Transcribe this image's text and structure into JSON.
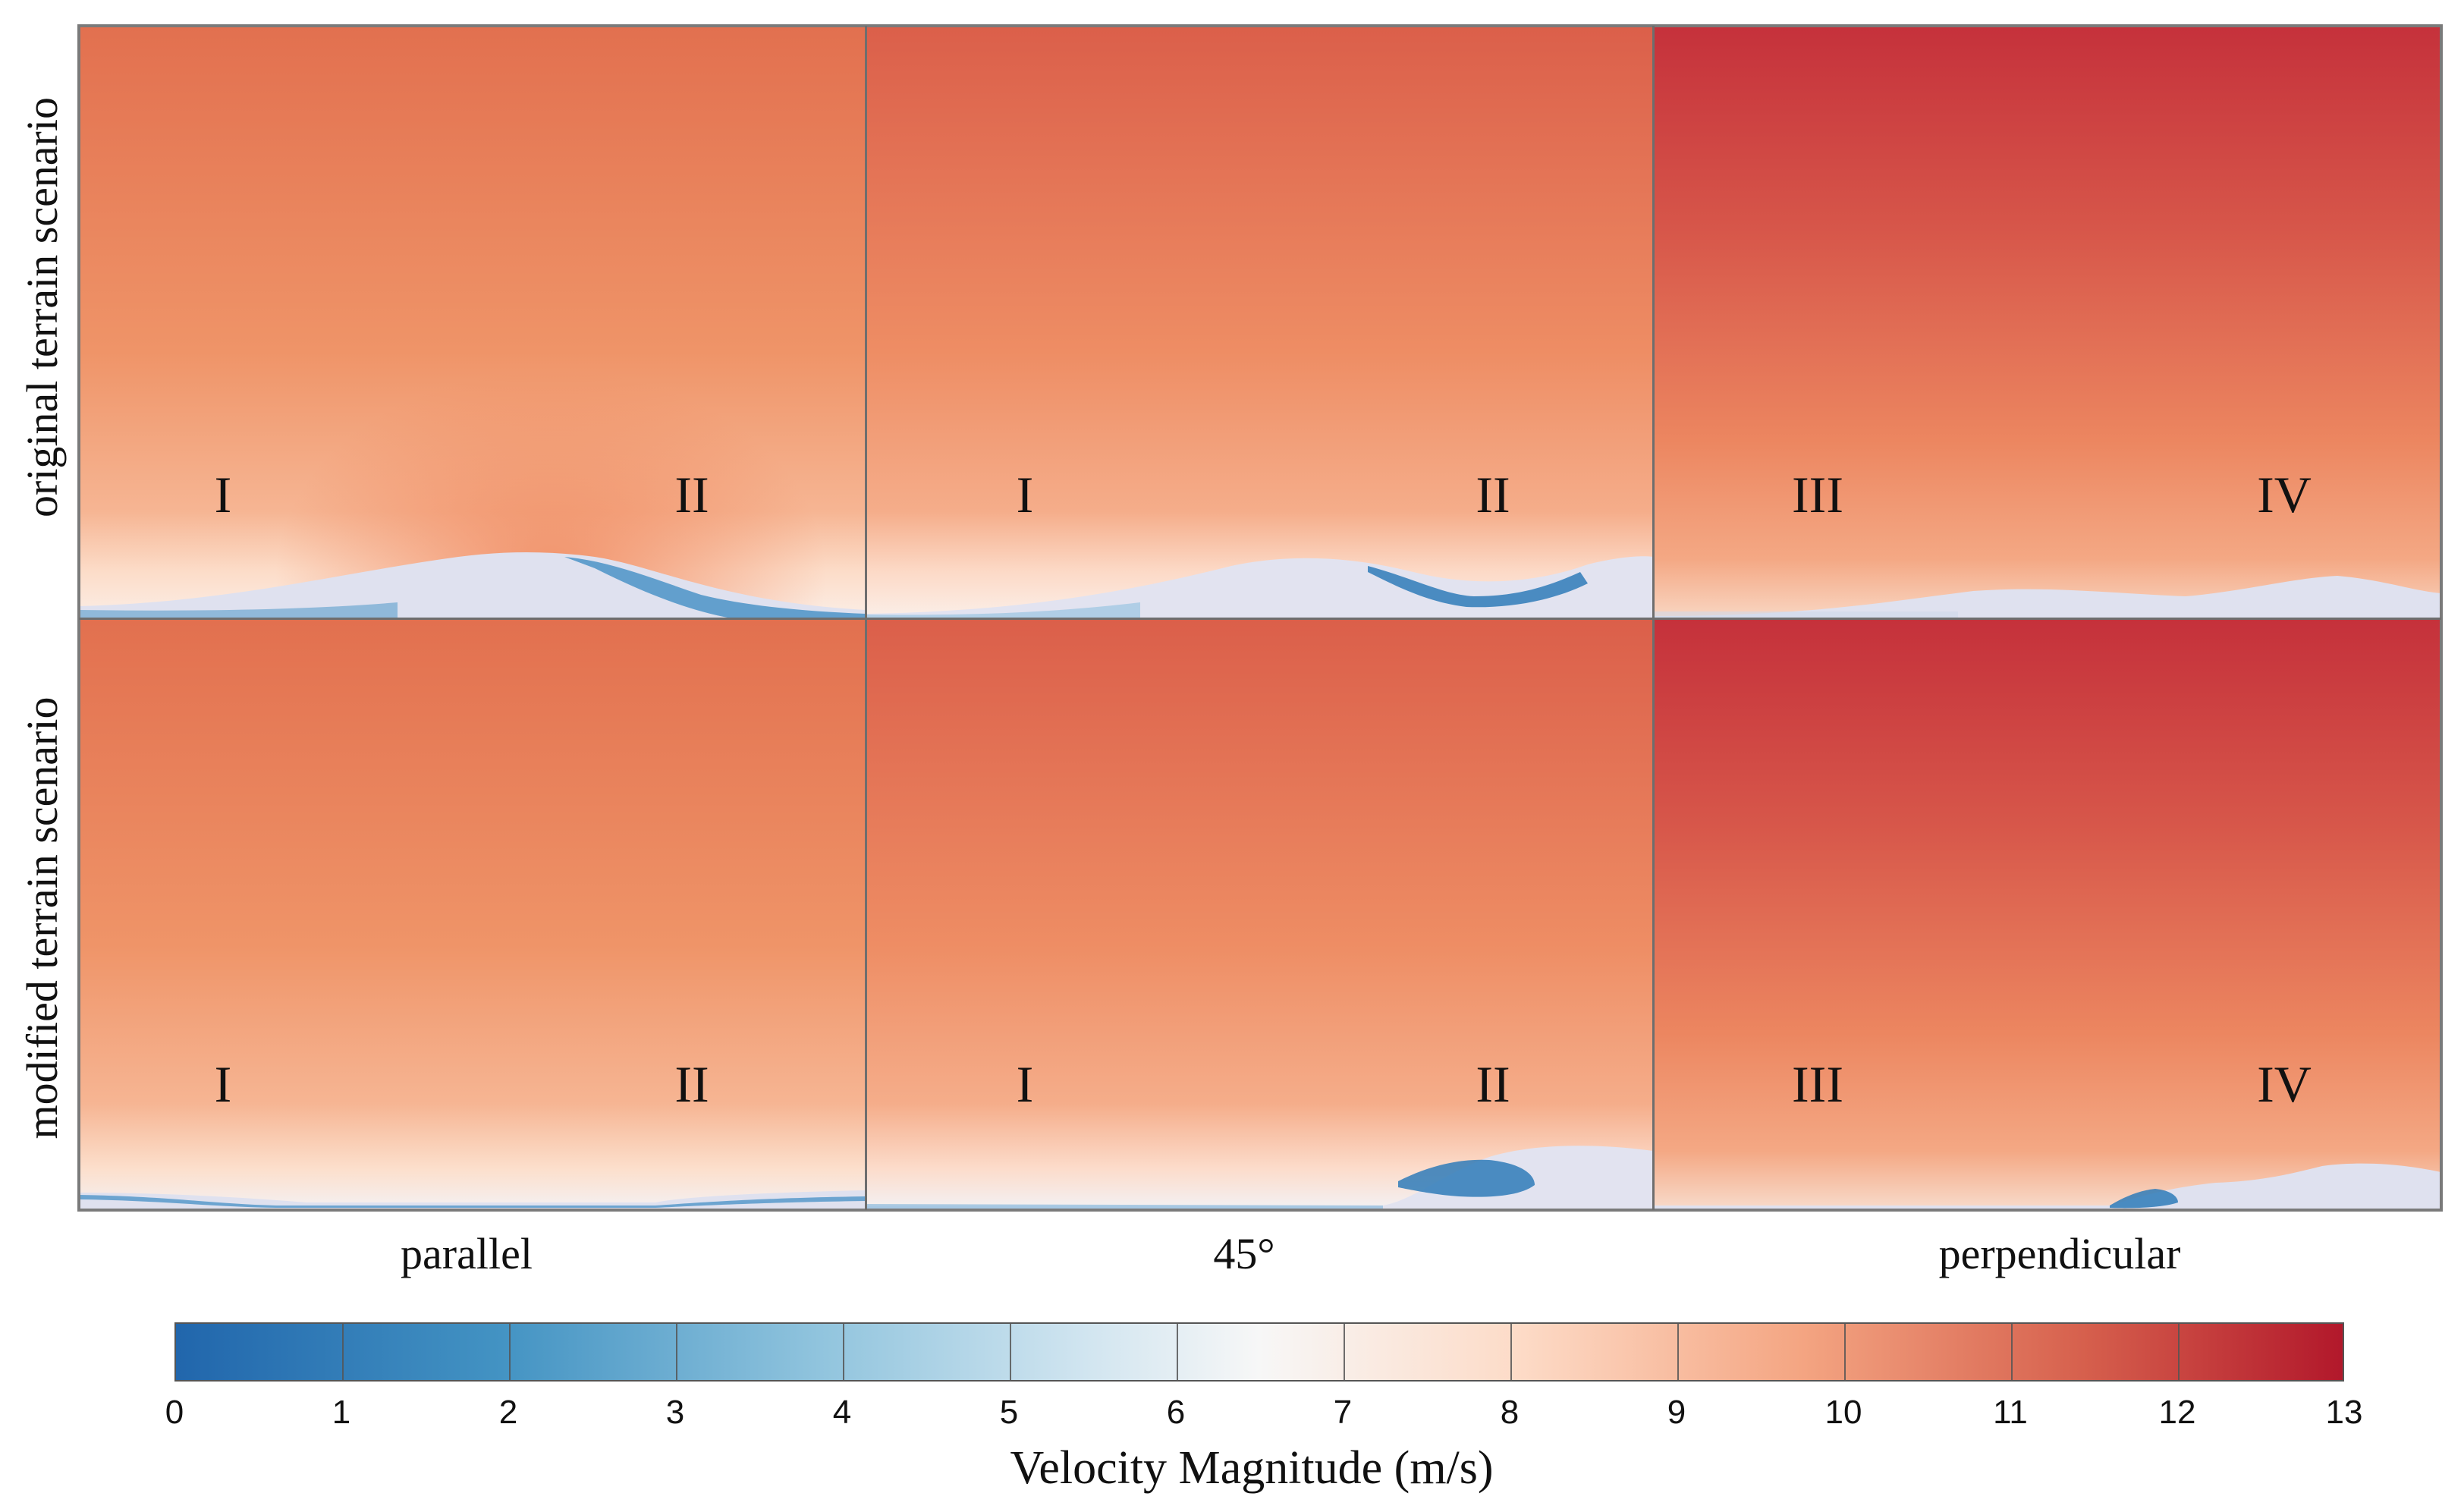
{
  "chart_data": {
    "type": "heatmap",
    "title": "",
    "row_labels": [
      "original terrain scenario",
      "modified terrain scenario"
    ],
    "column_labels": [
      "parallel",
      "45°",
      "perpendicular"
    ],
    "panels": [
      {
        "row": "original terrain scenario",
        "column": "parallel",
        "markers": [
          "I",
          "II"
        ],
        "top_velocity_ms": 10.8,
        "mid_velocity_ms": 9.7,
        "min_velocity_ms": 1
      },
      {
        "row": "original terrain scenario",
        "column": "45°",
        "markers": [
          "I",
          "II"
        ],
        "top_velocity_ms": 11.1,
        "mid_velocity_ms": 10.1,
        "min_velocity_ms": 1
      },
      {
        "row": "original terrain scenario",
        "column": "perpendicular",
        "markers": [
          "III",
          "IV"
        ],
        "top_velocity_ms": 12.2,
        "mid_velocity_ms": 10.6,
        "min_velocity_ms": 5
      },
      {
        "row": "modified terrain scenario",
        "column": "parallel",
        "markers": [
          "I",
          "II"
        ],
        "top_velocity_ms": 10.8,
        "mid_velocity_ms": 9.9,
        "min_velocity_ms": 3
      },
      {
        "row": "modified terrain scenario",
        "column": "45°",
        "markers": [
          "I",
          "II"
        ],
        "top_velocity_ms": 11.1,
        "mid_velocity_ms": 10.2,
        "min_velocity_ms": 2
      },
      {
        "row": "modified terrain scenario",
        "column": "perpendicular",
        "markers": [
          "III",
          "IV"
        ],
        "top_velocity_ms": 12.2,
        "mid_velocity_ms": 10.6,
        "min_velocity_ms": 2
      }
    ],
    "colorbar": {
      "label": "Velocity Magnitude (m/s)",
      "min": 0,
      "max": 13,
      "ticks": [
        "0",
        "1",
        "2",
        "3",
        "4",
        "5",
        "6",
        "7",
        "8",
        "9",
        "10",
        "11",
        "12",
        "13"
      ],
      "colors": [
        "#2166ac",
        "#4393c3",
        "#92c5de",
        "#d1e5f0",
        "#f7f7f7",
        "#fddbc7",
        "#f4a582",
        "#d6604d",
        "#b2182b"
      ]
    }
  }
}
